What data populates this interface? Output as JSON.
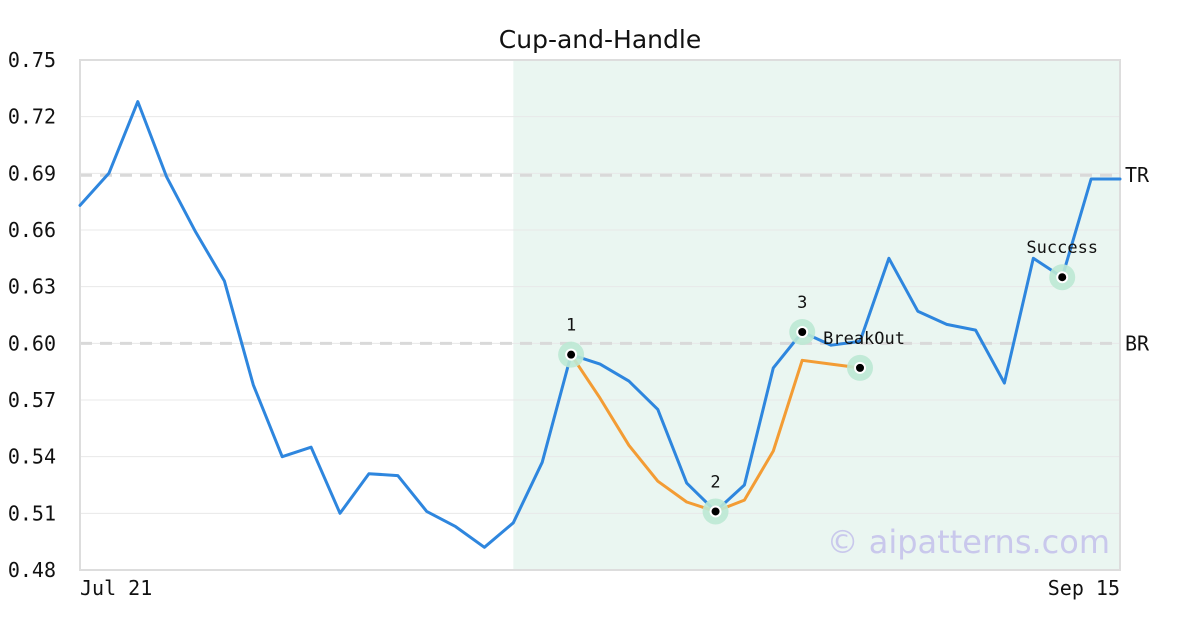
{
  "chart_data": {
    "type": "line",
    "title": "Cup-and-Handle",
    "xlabel": "",
    "ylabel": "",
    "ylim": [
      0.48,
      0.75
    ],
    "y_ticks": [
      "0.48",
      "0.51",
      "0.54",
      "0.57",
      "0.60",
      "0.63",
      "0.66",
      "0.69",
      "0.72",
      "0.75"
    ],
    "x_tick_labels": [
      "Jul 21",
      "Sep 15"
    ],
    "grid": "horizontal",
    "series": [
      {
        "color": "#2e86de",
        "values": [
          0.673,
          0.69,
          0.728,
          0.688,
          0.659,
          0.633,
          0.578,
          0.54,
          0.545,
          0.51,
          0.531,
          0.53,
          0.511,
          0.503,
          0.492,
          0.505,
          0.537,
          0.594,
          0.589,
          0.58,
          0.565,
          0.526,
          0.511,
          0.525,
          0.587,
          0.606,
          0.599,
          0.601,
          0.645,
          0.617,
          0.61,
          0.607,
          0.579,
          0.645,
          0.635,
          0.687,
          0.687
        ]
      },
      {
        "color": "#f39c34",
        "points": [
          [
            17,
            0.594
          ],
          [
            18,
            0.571
          ],
          [
            19,
            0.546
          ],
          [
            20,
            0.527
          ],
          [
            21,
            0.516
          ],
          [
            22,
            0.511
          ],
          [
            23,
            0.517
          ],
          [
            24,
            0.543
          ],
          [
            25,
            0.591
          ],
          [
            26,
            0.589
          ],
          [
            27,
            0.587
          ]
        ]
      }
    ],
    "shaded_region": {
      "from": 15,
      "to": 36,
      "color": "#eaf6f1"
    },
    "reference_lines": [
      {
        "label": "TR",
        "value": 0.689
      },
      {
        "label": "BR",
        "value": 0.6
      }
    ],
    "annotations": [
      {
        "label": "1",
        "index": 17,
        "value": 0.594,
        "label_position": "above"
      },
      {
        "label": "2",
        "index": 22,
        "value": 0.511,
        "label_position": "above"
      },
      {
        "label": "3",
        "index": 25,
        "value": 0.606,
        "label_position": "above"
      },
      {
        "label": "BreakOut",
        "index": 27,
        "value": 0.587,
        "label_position": "above-right"
      },
      {
        "label": "Success",
        "index": 34,
        "value": 0.635,
        "label_position": "above"
      }
    ],
    "watermark": "© aipatterns.com",
    "colors": {
      "main_line": "#2e86de",
      "pattern_line": "#f39c34",
      "marker_halo": "#bde9d4",
      "reference_line": "#d9d9d9",
      "watermark": "#c9c8ec"
    }
  }
}
